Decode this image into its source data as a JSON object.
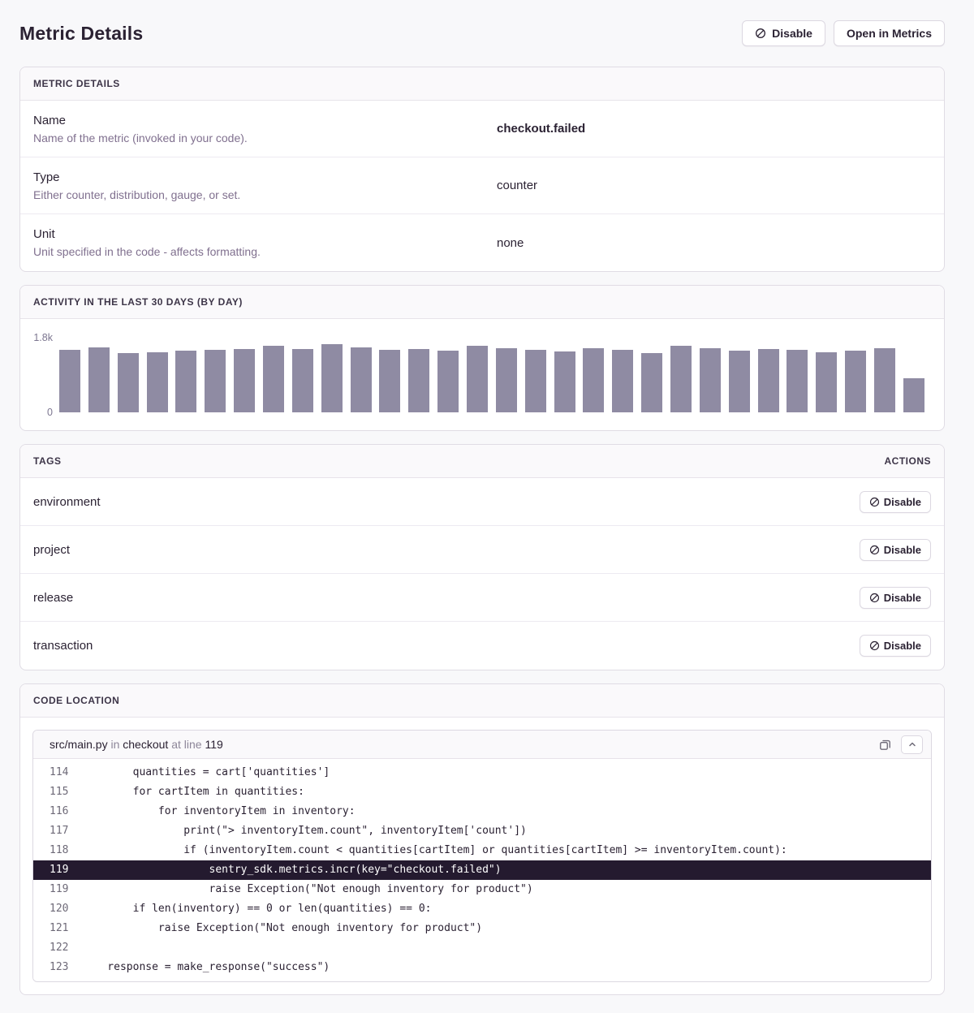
{
  "page": {
    "title": "Metric Details"
  },
  "header_actions": {
    "disable_label": "Disable",
    "open_label": "Open in Metrics"
  },
  "metric_details": {
    "section_title": "METRIC DETAILS",
    "rows": [
      {
        "label": "Name",
        "description": "Name of the metric (invoked in your code).",
        "value": "checkout.failed",
        "emphasized": true
      },
      {
        "label": "Type",
        "description": "Either counter, distribution, gauge, or set.",
        "value": "counter",
        "emphasized": false
      },
      {
        "label": "Unit",
        "description": "Unit specified in the code - affects formatting.",
        "value": "none",
        "emphasized": false
      }
    ]
  },
  "activity": {
    "section_title": "ACTIVITY IN THE LAST 30 DAYS (BY DAY)"
  },
  "chart_data": {
    "type": "bar",
    "title": "Activity in the last 30 days (by day)",
    "xlabel": "",
    "ylabel": "",
    "ylim": [
      0,
      1800
    ],
    "ytick_labels": [
      "0",
      "1.8k"
    ],
    "grid": false,
    "legend": false,
    "bar_color": "#8f8ba3",
    "values": [
      1510,
      1570,
      1430,
      1450,
      1490,
      1510,
      1530,
      1600,
      1530,
      1640,
      1570,
      1510,
      1530,
      1490,
      1600,
      1550,
      1510,
      1470,
      1550,
      1510,
      1430,
      1600,
      1550,
      1490,
      1530,
      1510,
      1450,
      1490,
      1550,
      820
    ]
  },
  "tags": {
    "section_title": "TAGS",
    "actions_title": "ACTIONS",
    "disable_label": "Disable",
    "rows": [
      "environment",
      "project",
      "release",
      "transaction"
    ]
  },
  "code_location": {
    "section_title": "CODE LOCATION",
    "file": "src/main.py",
    "in_word": "in",
    "function": "checkout",
    "at_line_word": "at line",
    "line_number": "119",
    "lines": [
      {
        "number": "114",
        "code": "        quantities = cart['quantities']",
        "highlighted": false
      },
      {
        "number": "115",
        "code": "        for cartItem in quantities:",
        "highlighted": false
      },
      {
        "number": "116",
        "code": "            for inventoryItem in inventory:",
        "highlighted": false
      },
      {
        "number": "117",
        "code": "                print(\"> inventoryItem.count\", inventoryItem['count'])",
        "highlighted": false
      },
      {
        "number": "118",
        "code": "                if (inventoryItem.count < quantities[cartItem] or quantities[cartItem] >= inventoryItem.count):",
        "highlighted": false
      },
      {
        "number": "119",
        "code": "                    sentry_sdk.metrics.incr(key=\"checkout.failed\")",
        "highlighted": true
      },
      {
        "number": "119",
        "code": "                    raise Exception(\"Not enough inventory for product\")",
        "highlighted": false
      },
      {
        "number": "120",
        "code": "        if len(inventory) == 0 or len(quantities) == 0:",
        "highlighted": false
      },
      {
        "number": "121",
        "code": "            raise Exception(\"Not enough inventory for product\")",
        "highlighted": false
      },
      {
        "number": "122",
        "code": "",
        "highlighted": false
      },
      {
        "number": "123",
        "code": "    response = make_response(\"success\")",
        "highlighted": false
      }
    ]
  },
  "colors": {
    "text_dark": "#2b2233",
    "text_muted": "#80708f",
    "bar": "#8f8ba3",
    "highlight_line_bg": "#241a2f",
    "panel_border": "#e0dce4",
    "panel_header_bg": "#faf9fb",
    "page_bg": "#f8f8fa"
  }
}
